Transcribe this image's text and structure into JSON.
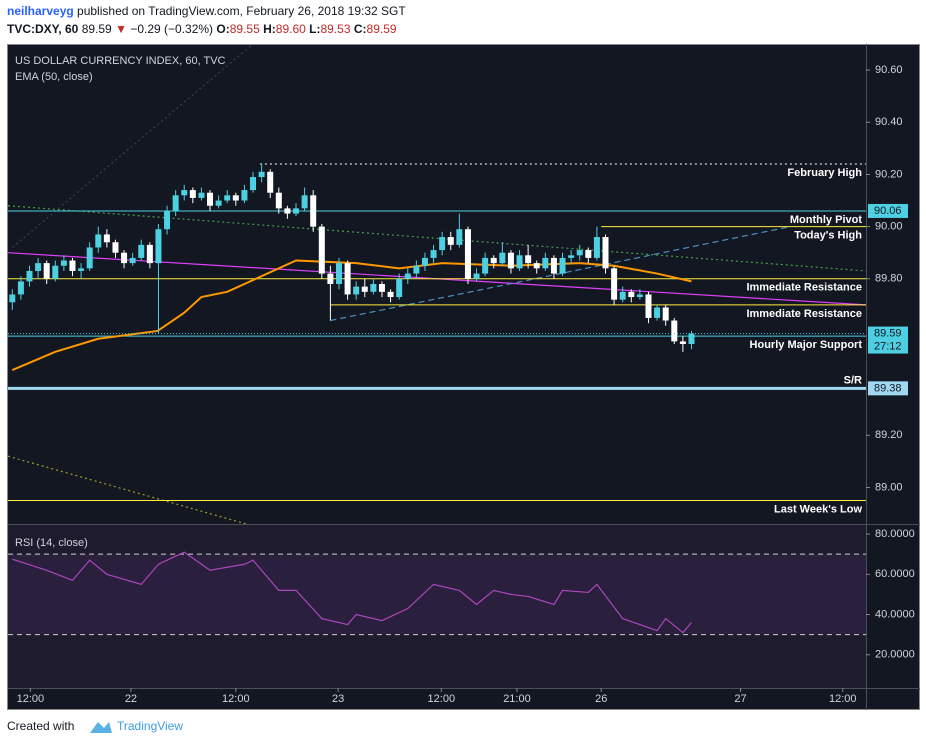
{
  "header": {
    "user": "neilharveyg",
    "published": " published on TradingView.com, February 26, 2018 19:32 SGT",
    "symbol": "TVC:DXY, 60",
    "last": "89.59",
    "arrow": "▼",
    "change": "−0.29 (−0.32%)",
    "ohlc": [
      {
        "k": "O:",
        "v": "89.55"
      },
      {
        "k": "H:",
        "v": "89.60"
      },
      {
        "k": "L:",
        "v": "89.53"
      },
      {
        "k": "C:",
        "v": "89.59"
      }
    ]
  },
  "chart_data": [
    {
      "type": "candlestick",
      "title": "US DOLLAR CURRENCY INDEX, 60, TVC",
      "xlim": [
        -0.5,
        99.3
      ],
      "xticks": [
        {
          "value": 2.1,
          "label": "12:00"
        },
        {
          "value": 13.8,
          "label": "22"
        },
        {
          "value": 26,
          "label": "12:00"
        },
        {
          "value": 37.9,
          "label": "23"
        },
        {
          "value": 49.9,
          "label": "12:00"
        },
        {
          "value": 58.7,
          "label": "21:00"
        },
        {
          "value": 68.5,
          "label": "26"
        },
        {
          "value": 84.7,
          "label": "27"
        },
        {
          "value": 96.6,
          "label": "12:00"
        }
      ],
      "ylim": [
        88.86,
        90.7
      ],
      "yticks": [
        {
          "value": 89,
          "label": "89.00"
        },
        {
          "value": 89.2,
          "label": "89.20"
        },
        {
          "value": 89.8,
          "label": "89.80"
        },
        {
          "value": 90,
          "label": "90.00"
        },
        {
          "value": 90.2,
          "label": "90.20"
        },
        {
          "value": 90.4,
          "label": "90.40"
        },
        {
          "value": 90.6,
          "label": "90.60"
        }
      ],
      "up_color": "#4dd0e1",
      "down_color": "#ffffff",
      "candles": [
        [
          89.71,
          89.76,
          89.68,
          89.74
        ],
        [
          89.74,
          89.81,
          89.72,
          89.79
        ],
        [
          89.79,
          89.85,
          89.77,
          89.83
        ],
        [
          89.83,
          89.88,
          89.8,
          89.86
        ],
        [
          89.86,
          89.87,
          89.78,
          89.8
        ],
        [
          89.8,
          89.87,
          89.79,
          89.85
        ],
        [
          89.85,
          89.89,
          89.83,
          89.87
        ],
        [
          89.87,
          89.88,
          89.81,
          89.83
        ],
        [
          89.83,
          89.86,
          89.8,
          89.84
        ],
        [
          89.84,
          89.94,
          89.83,
          89.92
        ],
        [
          89.92,
          90.0,
          89.9,
          89.97
        ],
        [
          89.97,
          89.99,
          89.92,
          89.94
        ],
        [
          89.94,
          89.95,
          89.88,
          89.9
        ],
        [
          89.9,
          89.91,
          89.84,
          89.86
        ],
        [
          89.86,
          89.9,
          89.85,
          89.88
        ],
        [
          89.88,
          89.95,
          89.87,
          89.93
        ],
        [
          89.93,
          89.94,
          89.84,
          89.86
        ],
        [
          89.86,
          90.01,
          89.59,
          89.99
        ],
        [
          89.99,
          90.08,
          89.97,
          90.06
        ],
        [
          90.06,
          90.14,
          90.04,
          90.12
        ],
        [
          90.12,
          90.16,
          90.1,
          90.14
        ],
        [
          90.14,
          90.15,
          90.09,
          90.11
        ],
        [
          90.11,
          90.15,
          90.1,
          90.13
        ],
        [
          90.13,
          90.14,
          90.06,
          90.08
        ],
        [
          90.08,
          90.12,
          90.07,
          90.1
        ],
        [
          90.1,
          90.14,
          90.09,
          90.12
        ],
        [
          90.12,
          90.13,
          90.08,
          90.1
        ],
        [
          90.1,
          90.16,
          90.09,
          90.14
        ],
        [
          90.14,
          90.21,
          90.13,
          90.19
        ],
        [
          90.19,
          90.24,
          90.17,
          90.21
        ],
        [
          90.21,
          90.22,
          90.11,
          90.13
        ],
        [
          90.13,
          90.15,
          90.05,
          90.07
        ],
        [
          90.07,
          90.08,
          90.03,
          90.05
        ],
        [
          90.05,
          90.09,
          90.04,
          90.07
        ],
        [
          90.07,
          90.15,
          90.06,
          90.12
        ],
        [
          90.12,
          90.14,
          89.98,
          90.0
        ],
        [
          90.0,
          90.01,
          89.8,
          89.82
        ],
        [
          89.82,
          89.85,
          89.64,
          89.78
        ],
        [
          89.78,
          89.88,
          89.76,
          89.86
        ],
        [
          89.86,
          89.87,
          89.72,
          89.74
        ],
        [
          89.74,
          89.79,
          89.72,
          89.77
        ],
        [
          89.77,
          89.8,
          89.73,
          89.75
        ],
        [
          89.75,
          89.8,
          89.74,
          89.78
        ],
        [
          89.78,
          89.79,
          89.73,
          89.75
        ],
        [
          89.75,
          89.76,
          89.71,
          89.73
        ],
        [
          89.73,
          89.82,
          89.72,
          89.8
        ],
        [
          89.8,
          89.84,
          89.78,
          89.82
        ],
        [
          89.82,
          89.87,
          89.8,
          89.85
        ],
        [
          89.85,
          89.9,
          89.83,
          89.88
        ],
        [
          89.88,
          89.93,
          89.86,
          89.91
        ],
        [
          89.91,
          89.98,
          89.89,
          89.96
        ],
        [
          89.96,
          89.98,
          89.91,
          89.93
        ],
        [
          89.93,
          90.05,
          89.92,
          89.99
        ],
        [
          89.99,
          90.0,
          89.78,
          89.8
        ],
        [
          89.8,
          89.84,
          89.79,
          89.82
        ],
        [
          89.82,
          89.9,
          89.81,
          89.88
        ],
        [
          89.88,
          89.89,
          89.84,
          89.86
        ],
        [
          89.86,
          89.94,
          89.85,
          89.9
        ],
        [
          89.9,
          89.91,
          89.82,
          89.84
        ],
        [
          89.84,
          89.91,
          89.83,
          89.89
        ],
        [
          89.89,
          89.93,
          89.84,
          89.86
        ],
        [
          89.86,
          89.87,
          89.82,
          89.84
        ],
        [
          89.84,
          89.9,
          89.83,
          89.88
        ],
        [
          89.88,
          89.89,
          89.8,
          89.82
        ],
        [
          89.82,
          89.9,
          89.81,
          89.88
        ],
        [
          89.88,
          89.91,
          89.86,
          89.89
        ],
        [
          89.89,
          89.93,
          89.87,
          89.91
        ],
        [
          89.91,
          89.92,
          89.86,
          89.88
        ],
        [
          89.88,
          90.0,
          89.87,
          89.96
        ],
        [
          89.96,
          89.97,
          89.82,
          89.84
        ],
        [
          89.84,
          89.85,
          89.7,
          89.72
        ],
        [
          89.72,
          89.77,
          89.71,
          89.75
        ],
        [
          89.75,
          89.76,
          89.71,
          89.73
        ],
        [
          89.73,
          89.76,
          89.72,
          89.74
        ],
        [
          89.74,
          89.75,
          89.63,
          89.65
        ],
        [
          89.65,
          89.7,
          89.64,
          89.69
        ],
        [
          89.69,
          89.7,
          89.62,
          89.64
        ],
        [
          89.64,
          89.65,
          89.55,
          89.56
        ],
        [
          89.56,
          89.58,
          89.52,
          89.55
        ],
        [
          89.55,
          89.6,
          89.53,
          89.59
        ]
      ],
      "countdown": "27:12",
      "indicator": {
        "name": "EMA (50, close)",
        "color": "#ff9800",
        "x": [
          0,
          5,
          10,
          16.9,
          20,
          22,
          25,
          33,
          40,
          45,
          50,
          58,
          66,
          70,
          75,
          79
        ],
        "values": [
          89.45,
          89.52,
          89.57,
          89.6,
          89.67,
          89.73,
          89.75,
          89.87,
          89.86,
          89.84,
          89.86,
          89.85,
          89.86,
          89.85,
          89.82,
          89.79
        ]
      },
      "levels": [
        {
          "label": "February High",
          "price": 90.24,
          "from": 28.8,
          "color": "#ffffff",
          "style": "dotted",
          "label_pos": "below"
        },
        {
          "label": "Monthly Pivot",
          "price": 90.06,
          "from": -0.5,
          "color": "#4dd0e1",
          "style": "solid",
          "label_pos": "below",
          "tag": true
        },
        {
          "label": "Today's High",
          "price": 90,
          "from": 68.5,
          "color": "#ffeb3b",
          "style": "solid",
          "label_pos": "below"
        },
        {
          "label": "Immediate Resistance",
          "price": 89.8,
          "from": -0.5,
          "color": "#ffeb3b",
          "style": "solid",
          "label_pos": "below"
        },
        {
          "label": "Immediate Resistance",
          "price": 89.7,
          "from": 37,
          "color": "#ffeb3b",
          "style": "solid",
          "label_pos": "below"
        },
        {
          "label": "Hourly Major Support",
          "price": 89.58,
          "from": -0.5,
          "color": "#4dd0e1",
          "style": "solid",
          "label_pos": "below",
          "tag": true
        },
        {
          "label": "S/R",
          "price": 89.38,
          "from": -0.5,
          "color": "#9fd8ef",
          "style": "thick",
          "label_pos": "above",
          "tag": true
        },
        {
          "label": "Last Week's Low",
          "price": 88.95,
          "from": -0.5,
          "color": "#ffeb3b",
          "style": "solid",
          "label_pos": "below"
        }
      ],
      "trendlines": [
        {
          "from": [
            -0.5,
            89.9
          ],
          "to": [
            99.3,
            89.7
          ],
          "color": "#e040fb",
          "style": "solid"
        },
        {
          "from": [
            -0.5,
            90.08
          ],
          "to": [
            99.3,
            89.83
          ],
          "color": "#43a047",
          "style": "dotted"
        },
        {
          "from": [
            37,
            89.64
          ],
          "to": [
            90.5,
            90
          ],
          "color": "#4a90c2",
          "style": "dashed"
        },
        {
          "from": [
            -0.5,
            89.12
          ],
          "to": [
            28.3,
            88.85
          ],
          "color": "#9e9d24",
          "style": "dotted"
        },
        {
          "from": [
            0,
            89.92
          ],
          "to": [
            28,
            90.7
          ],
          "color": "#3a4050",
          "style": "dotted"
        }
      ]
    },
    {
      "type": "line",
      "title": "RSI (14, close)",
      "color": "#ab47bc",
      "ylim": [
        3.5,
        84.5
      ],
      "yticks": [
        {
          "value": 20,
          "label": "20.0000"
        },
        {
          "value": 40,
          "label": "40.0000"
        },
        {
          "value": 60,
          "label": "60.0000"
        },
        {
          "value": 80,
          "label": "80.0000"
        }
      ],
      "bands": [
        30,
        70
      ],
      "x": [
        0,
        4,
        7,
        9,
        11,
        15,
        17,
        20,
        23,
        27,
        28,
        31,
        33,
        36,
        39,
        40,
        43,
        46,
        49,
        52,
        54,
        56,
        58,
        60,
        63,
        64,
        67,
        68,
        71,
        73,
        75,
        76,
        78,
        79
      ],
      "values": [
        67.5,
        62,
        57,
        67,
        60,
        55,
        65,
        71,
        62,
        65,
        67,
        52,
        52,
        38,
        35,
        40,
        37,
        43,
        55,
        52,
        45,
        52,
        50,
        49,
        45,
        52,
        51,
        55,
        38,
        35,
        32,
        38,
        31,
        36
      ]
    }
  ],
  "footer": {
    "created": "Created with",
    "brand": "TradingView"
  }
}
